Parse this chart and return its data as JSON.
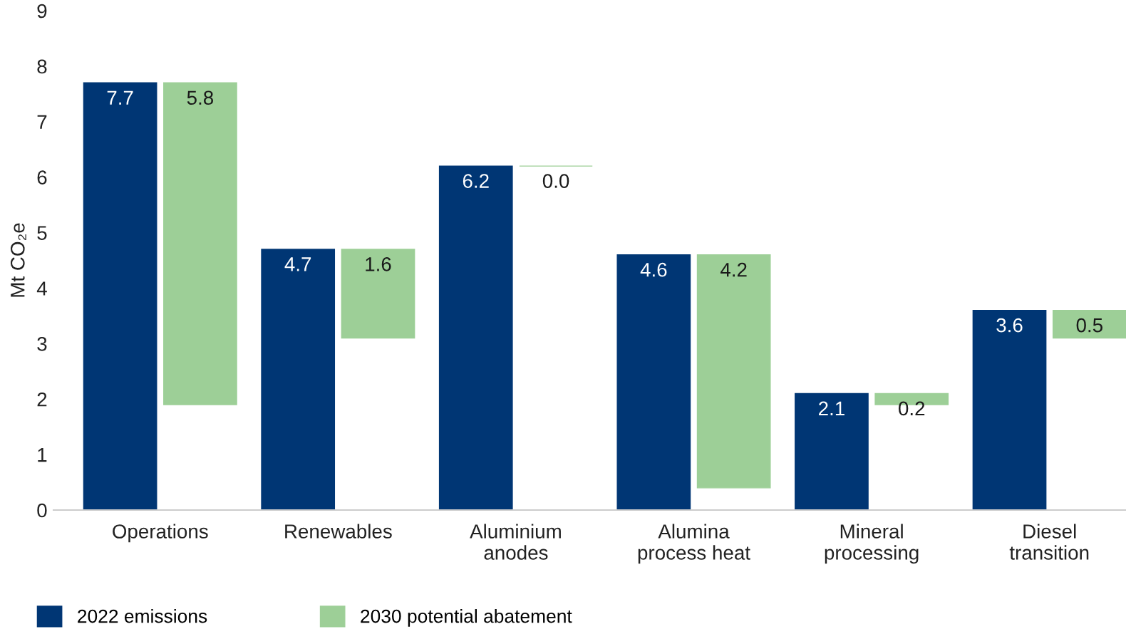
{
  "chart_data": {
    "type": "bar",
    "ylabel": "Mt CO₂e",
    "categories": [
      "Operations",
      "Renewables",
      "Aluminium anodes",
      "Alumina process heat",
      "Mineral processing",
      "Diesel transition"
    ],
    "series": [
      {
        "name": "2022 emissions",
        "color": "#003674",
        "values": [
          7.7,
          4.7,
          6.2,
          4.6,
          2.1,
          3.6
        ],
        "value_labels": [
          "7.7",
          "4.7",
          "6.2",
          "4.6",
          "2.1",
          "3.6"
        ]
      },
      {
        "name": "2030 potential abatement",
        "color": "#9dcf97",
        "values": [
          5.8,
          1.6,
          0.0,
          4.2,
          0.2,
          0.5
        ],
        "base": [
          1.9,
          3.1,
          6.2,
          0.4,
          1.9,
          3.1
        ],
        "value_labels": [
          "5.8",
          "1.6",
          "0.0",
          "4.2",
          "0.2",
          "0.5"
        ]
      }
    ],
    "ylim": [
      0,
      9
    ],
    "yticks": [
      0,
      1,
      2,
      3,
      4,
      5,
      6,
      7,
      8,
      9
    ],
    "grid": false,
    "legend": "bottom left"
  }
}
